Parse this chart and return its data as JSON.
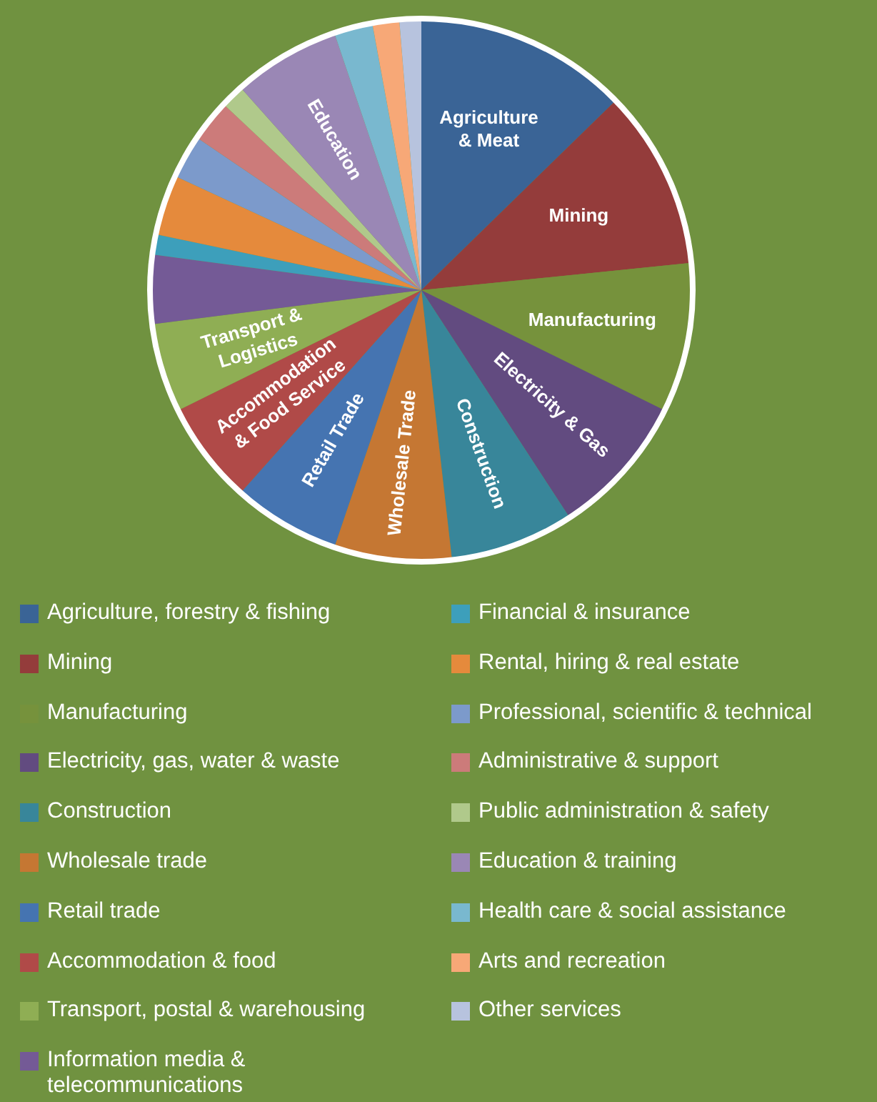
{
  "chart_data": {
    "type": "pie",
    "categories": [
      "Agriculture, forestry & fishing",
      "Mining",
      "Manufacturing",
      "Electricity, gas, water & waste",
      "Construction",
      "Wholesale trade",
      "Retail trade",
      "Accommodation & food",
      "Transport, postal & warehousing",
      "Information media & telecommunications",
      "Financial & insurance",
      "Rental, hiring & real estate",
      "Professional, scientific & technical",
      "Administrative & support",
      "Public administration & safety",
      "Education & training",
      "Health care & social assistance",
      "Arts and recreation",
      "Other services"
    ],
    "values": [
      12.7,
      10.7,
      8.9,
      8.5,
      7.4,
      7.0,
      6.4,
      6.1,
      5.3,
      4.1,
      1.2,
      3.6,
      2.6,
      2.5,
      1.4,
      6.4,
      2.3,
      1.6,
      1.3
    ],
    "colors": [
      "#3a6496",
      "#943c3b",
      "#76923c",
      "#624b80",
      "#38869a",
      "#c57733",
      "#4574b1",
      "#b04a48",
      "#8fae54",
      "#745a96",
      "#3d9fbb",
      "#e58a3c",
      "#7c9acb",
      "#cc7b7a",
      "#b0c98b",
      "#9a87b5",
      "#79b8cf",
      "#f7a877",
      "#b7c3de"
    ],
    "annotations": [
      {
        "text": "Agriculture\n& Meat",
        "x": "Agriculture, forestry & fishing"
      },
      {
        "text": "Mining",
        "x": "Mining"
      },
      {
        "text": "Manufacturing",
        "x": "Manufacturing"
      },
      {
        "text": "Electricity & Gas",
        "x": "Electricity, gas, water & waste"
      },
      {
        "text": "Construction",
        "x": "Construction"
      },
      {
        "text": "Wholesale Trade",
        "x": "Wholesale trade"
      },
      {
        "text": "Retail Trade",
        "x": "Retail trade"
      },
      {
        "text": "Accommodation\n& Food Service",
        "x": "Accommodation & food"
      },
      {
        "text": "Transport &\nLogistics",
        "x": "Transport, postal & warehousing"
      },
      {
        "text": "Education",
        "x": "Education & training"
      }
    ],
    "legend": "bottom"
  }
}
